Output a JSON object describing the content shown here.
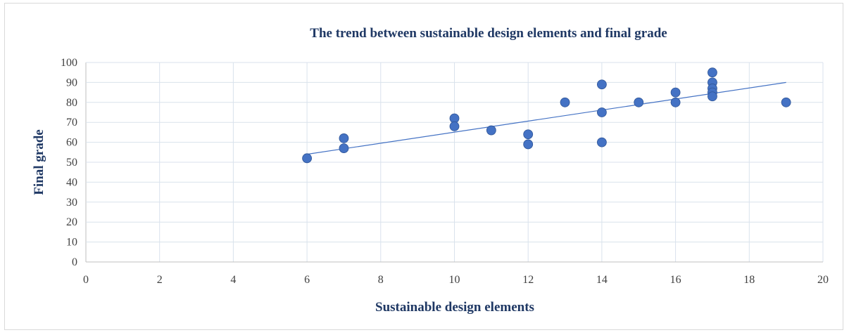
{
  "chart_data": {
    "type": "scatter",
    "title": "The trend between sustainable design elements and final grade",
    "xlabel": "Sustainable design elements",
    "ylabel": "Final grade",
    "xlim": [
      0,
      20
    ],
    "ylim": [
      0,
      100
    ],
    "xticks": [
      "0",
      "2",
      "4",
      "6",
      "8",
      "10",
      "12",
      "14",
      "16",
      "18",
      "20"
    ],
    "yticks": [
      "0",
      "10",
      "20",
      "30",
      "40",
      "50",
      "60",
      "70",
      "80",
      "90",
      "100"
    ],
    "grid": true,
    "legend": "none",
    "marker_color": "#4472c4",
    "points": [
      {
        "x": 6,
        "y": 52
      },
      {
        "x": 7,
        "y": 62
      },
      {
        "x": 7,
        "y": 57
      },
      {
        "x": 10,
        "y": 72
      },
      {
        "x": 10,
        "y": 68
      },
      {
        "x": 11,
        "y": 66
      },
      {
        "x": 12,
        "y": 64
      },
      {
        "x": 12,
        "y": 59
      },
      {
        "x": 13,
        "y": 80
      },
      {
        "x": 14,
        "y": 89
      },
      {
        "x": 14,
        "y": 75
      },
      {
        "x": 14,
        "y": 60
      },
      {
        "x": 15,
        "y": 80
      },
      {
        "x": 16,
        "y": 85
      },
      {
        "x": 16,
        "y": 80
      },
      {
        "x": 17,
        "y": 95
      },
      {
        "x": 17,
        "y": 90
      },
      {
        "x": 17,
        "y": 87
      },
      {
        "x": 17,
        "y": 85
      },
      {
        "x": 17,
        "y": 83
      },
      {
        "x": 19,
        "y": 80
      }
    ],
    "trendline": {
      "x": [
        6,
        19
      ],
      "y": [
        54,
        90
      ]
    }
  }
}
